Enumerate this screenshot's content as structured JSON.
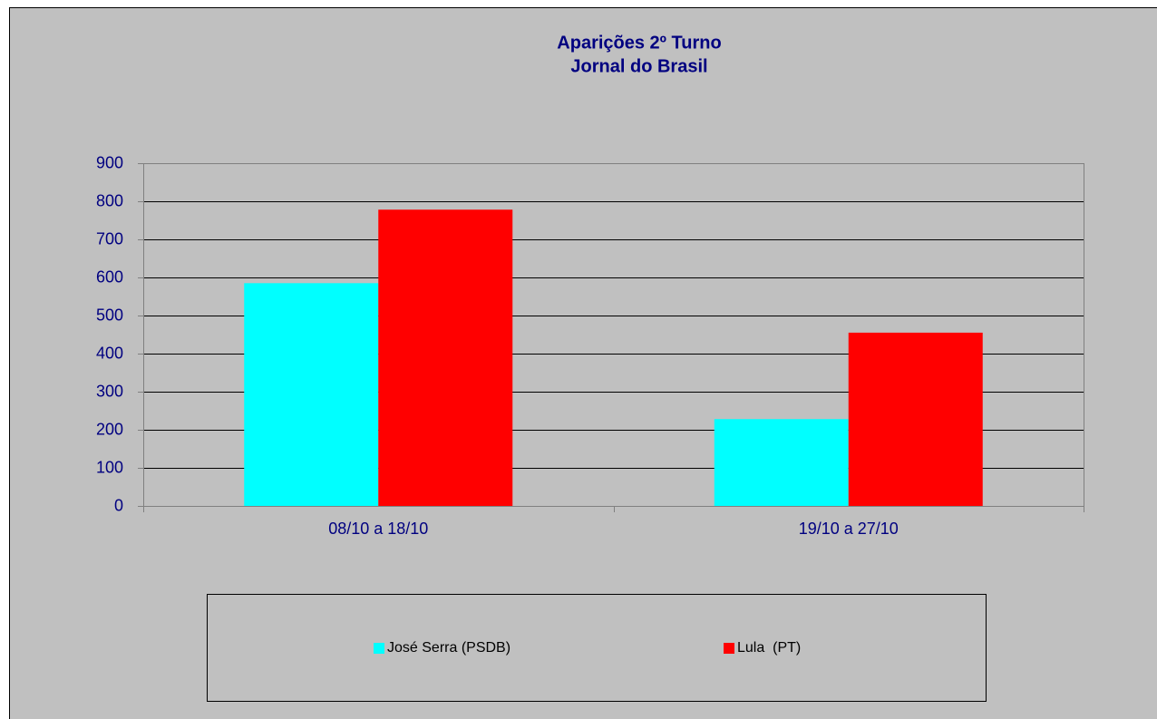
{
  "chart_data": {
    "type": "bar",
    "title": "Aparições 2º Turno",
    "subtitle": "Jornal do Brasil",
    "categories": [
      "08/10 a 18/10",
      "19/10 a 27/10"
    ],
    "series": [
      {
        "name": "José Serra (PSDB)",
        "color": "#00ffff",
        "values": [
          585,
          228
        ]
      },
      {
        "name": "Lula  (PT)",
        "color": "#ff0000",
        "values": [
          778,
          455
        ]
      }
    ],
    "ylim": [
      0,
      900
    ],
    "yticks": [
      0,
      100,
      200,
      300,
      400,
      500,
      600,
      700,
      800,
      900
    ],
    "grid": true,
    "legend": "bottom"
  }
}
